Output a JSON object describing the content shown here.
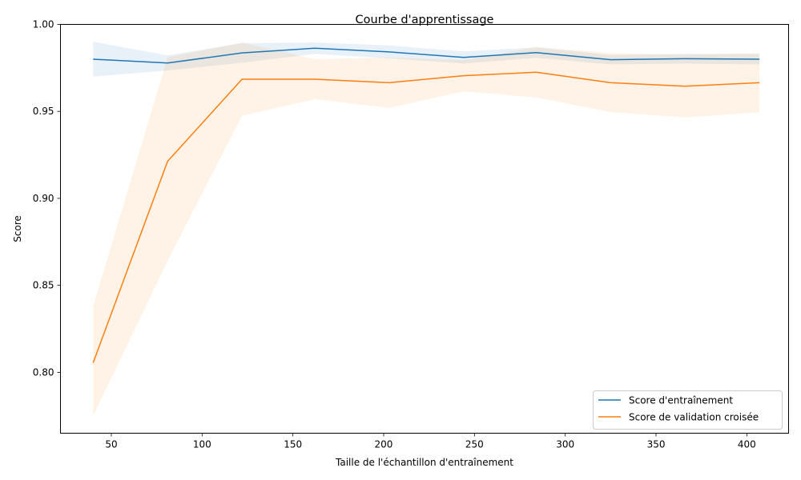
{
  "chart_data": {
    "type": "line",
    "title": "Courbe d'apprentissage",
    "xlabel": "Taille de l'échantillon d'entraînement",
    "ylabel": "Score",
    "xlim": [
      22,
      423
    ],
    "ylim": [
      0.765,
      1.0
    ],
    "xticks": [
      50,
      100,
      150,
      200,
      250,
      300,
      350,
      400
    ],
    "yticks": [
      0.8,
      0.85,
      0.9,
      0.95,
      1.0
    ],
    "xtick_labels": [
      "50",
      "100",
      "150",
      "200",
      "250",
      "300",
      "350",
      "400"
    ],
    "ytick_labels": [
      "0.80",
      "0.85",
      "0.90",
      "0.95",
      "1.00"
    ],
    "grid": false,
    "legend_position": "bottom-right",
    "x": [
      40,
      81,
      122,
      162,
      203,
      244,
      284,
      325,
      366,
      407
    ],
    "series": [
      {
        "name": "Score d'entraînement",
        "color": "#1f77b4",
        "values": [
          0.98,
          0.9778,
          0.9836,
          0.9863,
          0.9842,
          0.981,
          0.9838,
          0.9797,
          0.9803,
          0.98
        ],
        "lower": [
          0.97,
          0.9735,
          0.978,
          0.983,
          0.9805,
          0.9775,
          0.9808,
          0.977,
          0.9775,
          0.977
        ],
        "upper": [
          0.99,
          0.9822,
          0.9892,
          0.9896,
          0.9879,
          0.9845,
          0.9868,
          0.9824,
          0.9831,
          0.983
        ]
      },
      {
        "name": "Score de validation croisée",
        "color": "#ff7f0e",
        "values": [
          0.8055,
          0.9213,
          0.9685,
          0.9685,
          0.9665,
          0.9705,
          0.9725,
          0.9665,
          0.9645,
          0.9665
        ],
        "lower": [
          0.775,
          0.864,
          0.9475,
          0.957,
          0.952,
          0.9615,
          0.958,
          0.9495,
          0.9465,
          0.9495
        ],
        "upper": [
          0.838,
          0.981,
          0.9895,
          0.98,
          0.981,
          0.9795,
          0.987,
          0.9835,
          0.9825,
          0.9835
        ]
      }
    ]
  }
}
